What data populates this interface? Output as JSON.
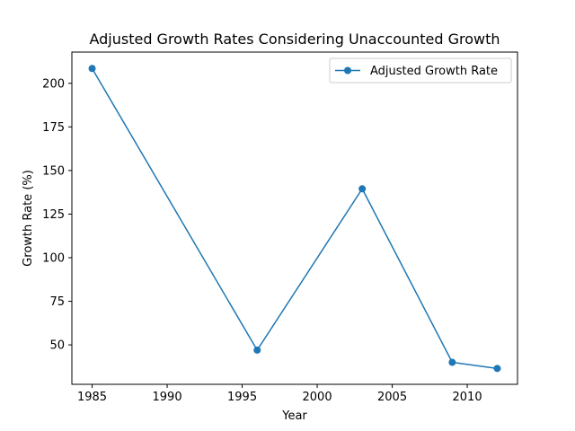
{
  "chart_data": {
    "type": "line",
    "title": "Adjusted Growth Rates Considering Unaccounted Growth",
    "xlabel": "Year",
    "ylabel": "Growth Rate (%)",
    "xlim": [
      1983.65,
      2013.35
    ],
    "ylim": [
      27.4,
      217.9
    ],
    "xticks": [
      1985,
      1990,
      1995,
      2000,
      2005,
      2010
    ],
    "yticks": [
      50,
      75,
      100,
      125,
      150,
      175,
      200
    ],
    "grid": false,
    "legend_position": "top-right",
    "series": [
      {
        "name": "Adjusted Growth Rate",
        "color": "#1f77b4",
        "marker": "circle",
        "x": [
          1985,
          1996,
          2003,
          2009,
          2012
        ],
        "y": [
          208.5,
          47.0,
          139.5,
          40.0,
          36.5
        ]
      }
    ]
  }
}
